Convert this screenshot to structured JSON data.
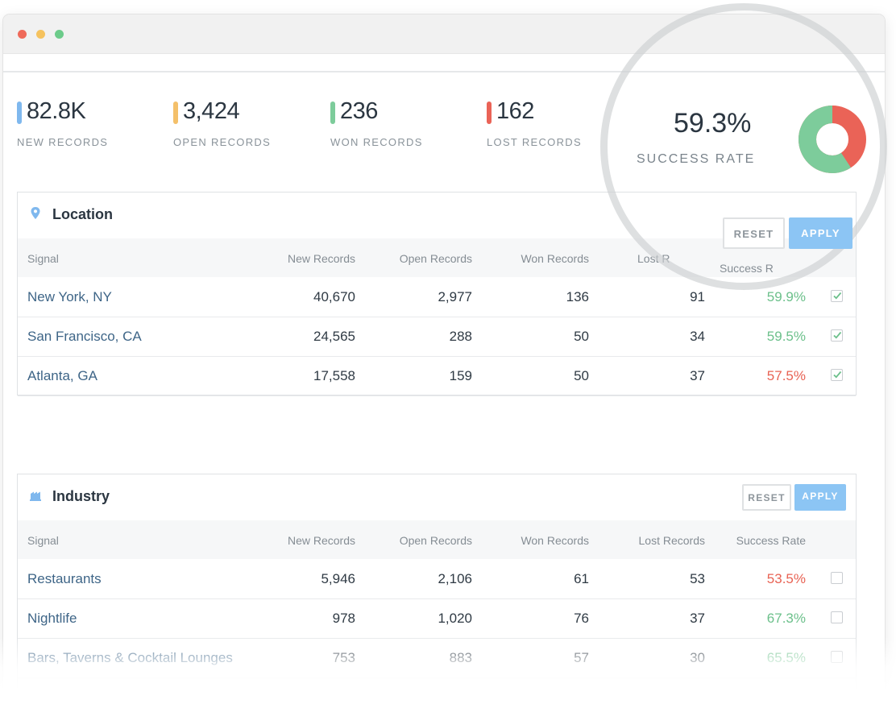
{
  "stats": [
    {
      "value": "82.8K",
      "label": "NEW RECORDS",
      "color": "#7fb8ee"
    },
    {
      "value": "3,424",
      "label": "OPEN RECORDS",
      "color": "#f4c06a"
    },
    {
      "value": "236",
      "label": "WON RECORDS",
      "color": "#7dcc9b"
    },
    {
      "value": "162",
      "label": "LOST RECORDS",
      "color": "#ea6357"
    }
  ],
  "success": {
    "value": "59.3%",
    "label": "SUCCESS RATE",
    "won_fraction": 0.593,
    "won_color": "#7dcc9b",
    "lost_color": "#ea6357"
  },
  "location": {
    "title": "Location",
    "icon": "map-pin-icon",
    "reset_label": "RESET",
    "apply_label": "APPLY",
    "columns": [
      "Signal",
      "New Records",
      "Open Records",
      "Won Records",
      "Lost R",
      "Success R"
    ],
    "rows": [
      {
        "name": "New York, NY",
        "new": "40,670",
        "open": "2,977",
        "won": "136",
        "lost": "91",
        "rate": "59.9%",
        "status": "good",
        "checked": true
      },
      {
        "name": "San Francisco, CA",
        "new": "24,565",
        "open": "288",
        "won": "50",
        "lost": "34",
        "rate": "59.5%",
        "status": "good",
        "checked": true
      },
      {
        "name": "Atlanta, GA",
        "new": "17,558",
        "open": "159",
        "won": "50",
        "lost": "37",
        "rate": "57.5%",
        "status": "bad",
        "checked": true
      }
    ]
  },
  "industry": {
    "title": "Industry",
    "icon": "industry-icon",
    "reset_label": "RESET",
    "apply_label": "APPLY",
    "columns": [
      "Signal",
      "New Records",
      "Open Records",
      "Won Records",
      "Lost Records",
      "Success Rate"
    ],
    "rows": [
      {
        "name": "Restaurants",
        "new": "5,946",
        "open": "2,106",
        "won": "61",
        "lost": "53",
        "rate": "53.5%",
        "status": "bad",
        "checked": false
      },
      {
        "name": "Nightlife",
        "new": "978",
        "open": "1,020",
        "won": "76",
        "lost": "37",
        "rate": "67.3%",
        "status": "good",
        "checked": false
      },
      {
        "name": "Bars, Taverns & Cocktail Lounges",
        "new": "753",
        "open": "883",
        "won": "57",
        "lost": "30",
        "rate": "65.5%",
        "status": "good",
        "checked": false
      }
    ]
  }
}
